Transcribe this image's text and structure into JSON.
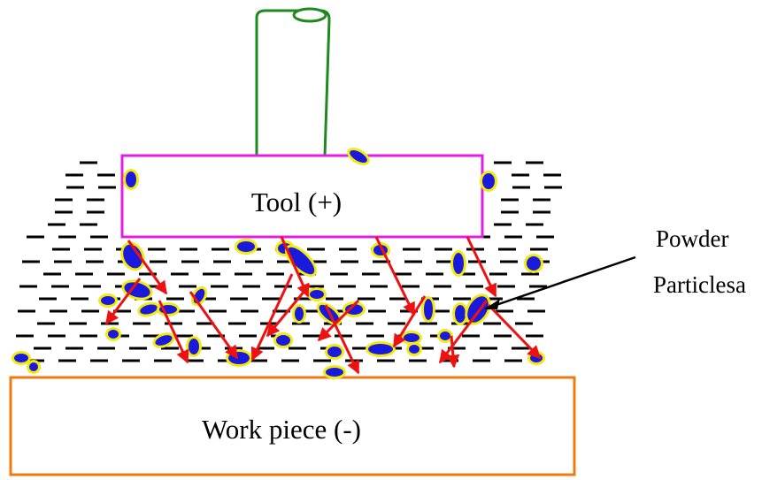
{
  "tool": {
    "label": "Tool (+)"
  },
  "workpiece": {
    "label": "Work piece (-)"
  },
  "callout": {
    "line1": "Powder",
    "line2": "Particlesa"
  },
  "colors": {
    "tool_outline": "#e020e0",
    "shaft": "#1e8a1e",
    "workpiece_outline": "#f07a10",
    "dielectric_dash": "#000000",
    "particle_fill": "#1a1adc",
    "particle_halo": "#f2ea10",
    "spark_arrow": "#ee1111",
    "leader_line": "#000000"
  },
  "icons": {
    "dielectric": "dash-line",
    "particle": "ellipse-with-halo",
    "spark": "arrow"
  }
}
